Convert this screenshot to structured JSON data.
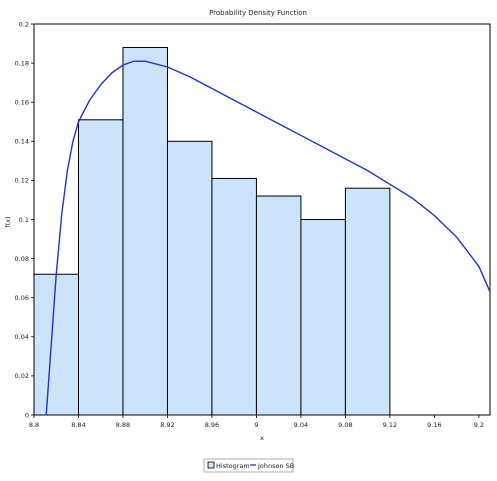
{
  "chart_data": {
    "type": "bar",
    "title": "Probability Density Function",
    "xlabel": "x",
    "ylabel": "f(x)",
    "xlim": [
      8.8,
      9.21
    ],
    "ylim": [
      0,
      0.2
    ],
    "x_ticks": [
      "8.8",
      "8.84",
      "8.88",
      "8.92",
      "8.96",
      "9",
      "9.04",
      "9.08",
      "9.12",
      "9.16",
      "9.2"
    ],
    "y_ticks": [
      "0",
      "0.02",
      "0.04",
      "0.06",
      "0.08",
      "0.1",
      "0.12",
      "0.14",
      "0.16",
      "0.18",
      "0.2"
    ],
    "grid": false,
    "legend_position": "bottom-center",
    "histogram": {
      "name": "Histogram",
      "color": "#cce4fb",
      "edge_color": "#000000",
      "bins": [
        {
          "x0": 8.8,
          "x1": 8.84,
          "value": 0.072
        },
        {
          "x0": 8.84,
          "x1": 8.88,
          "value": 0.151
        },
        {
          "x0": 8.88,
          "x1": 8.92,
          "value": 0.188
        },
        {
          "x0": 8.92,
          "x1": 8.96,
          "value": 0.14
        },
        {
          "x0": 8.96,
          "x1": 9.0,
          "value": 0.121
        },
        {
          "x0": 9.0,
          "x1": 9.04,
          "value": 0.112
        },
        {
          "x0": 9.04,
          "x1": 9.08,
          "value": 0.1
        },
        {
          "x0": 9.08,
          "x1": 9.12,
          "value": 0.116
        }
      ]
    },
    "series": [
      {
        "name": "Johnson SB",
        "type": "line",
        "color": "#2233cc",
        "x": [
          8.811,
          8.815,
          8.82,
          8.825,
          8.83,
          8.835,
          8.84,
          8.85,
          8.86,
          8.87,
          8.88,
          8.89,
          8.9,
          8.92,
          8.94,
          8.96,
          8.98,
          9.0,
          9.02,
          9.04,
          9.06,
          9.08,
          9.1,
          9.12,
          9.14,
          9.16,
          9.18,
          9.2,
          9.21
        ],
        "values": [
          0.0,
          0.032,
          0.072,
          0.103,
          0.125,
          0.14,
          0.15,
          0.161,
          0.169,
          0.175,
          0.179,
          0.181,
          0.181,
          0.178,
          0.173,
          0.167,
          0.161,
          0.155,
          0.149,
          0.143,
          0.137,
          0.131,
          0.125,
          0.118,
          0.111,
          0.102,
          0.091,
          0.076,
          0.063
        ]
      }
    ]
  }
}
